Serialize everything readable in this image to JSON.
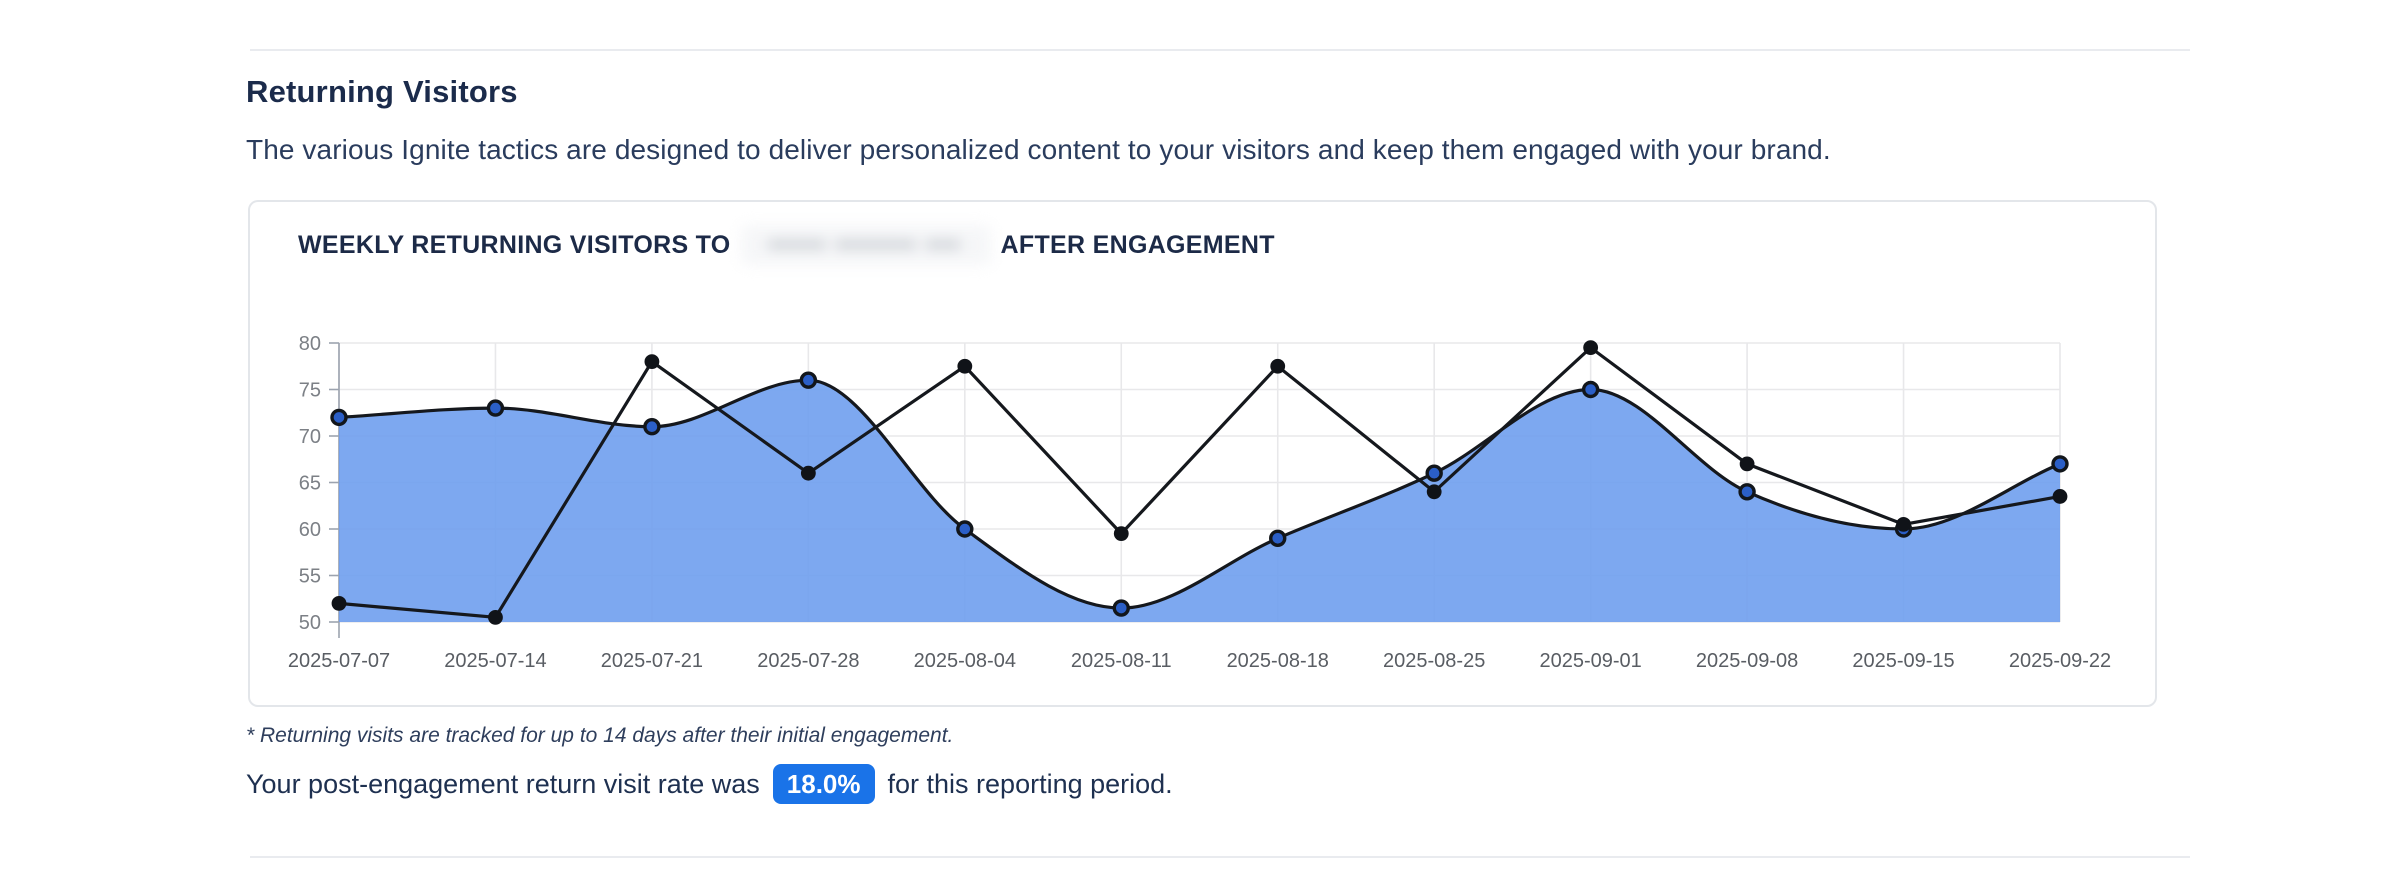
{
  "section": {
    "title": "Returning Visitors",
    "subtitle": "The various Ignite tactics are designed to deliver personalized content to your visitors and keep them engaged with your brand."
  },
  "chart": {
    "title_prefix": "WEEKLY RETURNING VISITORS TO",
    "title_suffix": "AFTER ENGAGEMENT",
    "redacted_placeholder": "▪▪▪▪▪ ▪▪▪▪▪▪▪ ▪▪▪"
  },
  "chart_data": {
    "type": "line",
    "title": "WEEKLY RETURNING VISITORS TO [redacted] AFTER ENGAGEMENT",
    "x": [
      "2025-07-07",
      "2025-07-14",
      "2025-07-21",
      "2025-07-28",
      "2025-08-04",
      "2025-08-11",
      "2025-08-18",
      "2025-08-25",
      "2025-09-01",
      "2025-09-08",
      "2025-09-15",
      "2025-09-22"
    ],
    "series": [
      {
        "name": "series-1-smoothed-area",
        "style": "smooth-area",
        "values": [
          72,
          73,
          71,
          76,
          60,
          51.5,
          59,
          66,
          75,
          64,
          60,
          67
        ]
      },
      {
        "name": "series-2-straight-line",
        "style": "straight-line",
        "values": [
          52,
          50.5,
          78,
          66,
          77.5,
          59.5,
          77.5,
          64,
          79.5,
          67,
          60.5,
          63.5
        ]
      }
    ],
    "ylim": [
      50,
      80
    ],
    "yticks": [
      80,
      75,
      70,
      65,
      60,
      55,
      50
    ],
    "xlabel": "",
    "ylabel": "",
    "grid": true,
    "legend": "none"
  },
  "footnote": {
    "text": "* Returning visits are tracked for up to 14 days after their initial engagement."
  },
  "summary": {
    "prefix": "Your post-engagement return visit rate was",
    "rate_badge": "18.0%",
    "suffix": "for this reporting period."
  },
  "colors": {
    "accent_blue": "#1A73E8",
    "area_fill": "#6F9FEE",
    "series_line": "#15181D",
    "marker_blue_fill": "#2B5FC7",
    "marker_ring": "#12161B",
    "marker_black": "#101318",
    "grid": "#E8E8EA",
    "axis": "#9CA3AF",
    "y_tick_label": "#7C8086",
    "x_tick_label": "#595D63",
    "heading_navy": "#1B2B4B"
  }
}
